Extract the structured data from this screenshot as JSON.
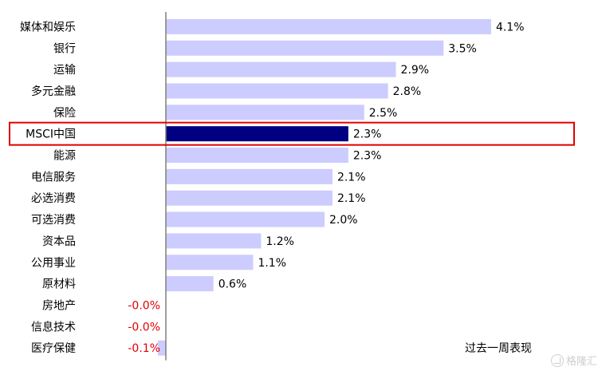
{
  "chart_data": {
    "type": "bar",
    "orientation": "horizontal",
    "categories": [
      "媒体和娱乐",
      "银行",
      "运输",
      "多元金融",
      "保险",
      "MSCI中国",
      "能源",
      "电信服务",
      "必选消费",
      "可选消费",
      "资本品",
      "公用事业",
      "原材料",
      "房地产",
      "信息技术",
      "医疗保健"
    ],
    "values": [
      4.1,
      3.5,
      2.9,
      2.8,
      2.5,
      2.3,
      2.3,
      2.1,
      2.1,
      2.0,
      1.2,
      1.1,
      0.6,
      -0.0,
      -0.0,
      -0.1
    ],
    "value_labels": [
      "4.1%",
      "3.5%",
      "2.9%",
      "2.8%",
      "2.5%",
      "2.3%",
      "2.3%",
      "2.1%",
      "2.1%",
      "2.0%",
      "1.2%",
      "1.1%",
      "0.6%",
      "-0.0%",
      "-0.0%",
      "-0.1%"
    ],
    "highlight_category": "MSCI中国",
    "legend": "过去一周表现",
    "legend_position": "bottom-right",
    "colors": {
      "bar": "#ccccff",
      "highlight_bar": "#000080",
      "highlight_box": "#e00000",
      "negative_label": "#e00000",
      "axis": "#7f7f7f",
      "text": "#000000"
    }
  },
  "watermark": "格隆汇"
}
